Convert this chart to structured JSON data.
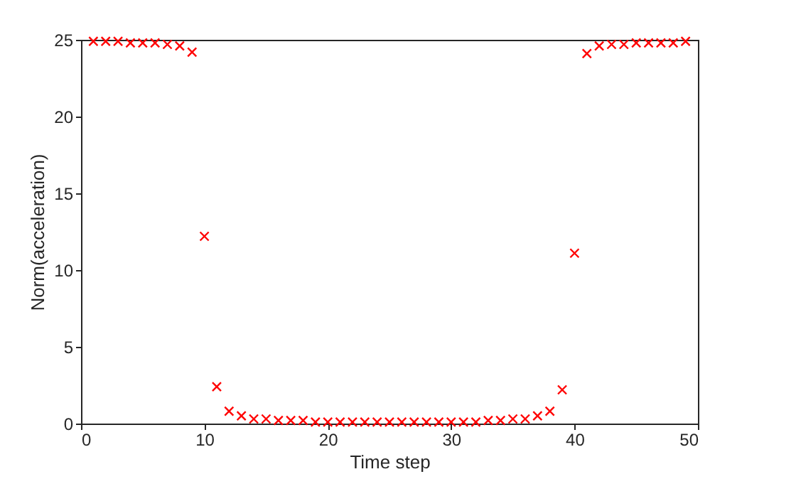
{
  "chart_data": {
    "type": "scatter",
    "xlabel": "Time step",
    "ylabel": "Norm(acceleration)",
    "x": [
      1,
      2,
      3,
      4,
      5,
      6,
      7,
      8,
      9,
      10,
      11,
      12,
      13,
      14,
      15,
      16,
      17,
      18,
      19,
      20,
      21,
      22,
      23,
      24,
      25,
      26,
      27,
      28,
      29,
      30,
      31,
      32,
      33,
      34,
      35,
      36,
      37,
      38,
      39,
      40,
      41,
      42,
      43,
      44,
      45,
      46,
      47,
      48,
      49
    ],
    "series": [
      {
        "color": "#ff0000",
        "values": [
          24.9,
          24.9,
          24.9,
          24.8,
          24.8,
          24.8,
          24.7,
          24.6,
          24.2,
          12.2,
          2.4,
          0.8,
          0.5,
          0.3,
          0.3,
          0.2,
          0.2,
          0.2,
          0.1,
          0.1,
          0.1,
          0.1,
          0.1,
          0.1,
          0.1,
          0.1,
          0.1,
          0.1,
          0.1,
          0.1,
          0.1,
          0.1,
          0.2,
          0.2,
          0.3,
          0.3,
          0.5,
          0.8,
          2.2,
          11.1,
          24.1,
          24.6,
          24.7,
          24.7,
          24.8,
          24.8,
          24.8,
          24.8,
          24.9
        ]
      }
    ],
    "marker": "cross",
    "xlim": [
      0,
      50
    ],
    "xticks": [
      0,
      10,
      20,
      30,
      40,
      50
    ],
    "ylim": [
      0,
      25
    ],
    "yticks": [
      0,
      5,
      10,
      15,
      20,
      25
    ],
    "grid": false
  }
}
